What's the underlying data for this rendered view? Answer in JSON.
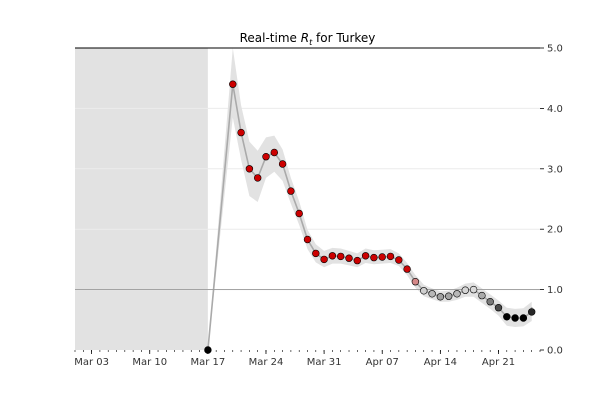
{
  "chart_data": {
    "type": "scatter",
    "title": {
      "prefix": "Real-time ",
      "symbol": "R",
      "subscript": "t",
      "suffix": " for Turkey"
    },
    "xlabel": "",
    "ylabel": "",
    "x_ticks": [
      {
        "label": "Mar 03",
        "date": "2020-03-03"
      },
      {
        "label": "Mar 10",
        "date": "2020-03-10"
      },
      {
        "label": "Mar 17",
        "date": "2020-03-17"
      },
      {
        "label": "Mar 24",
        "date": "2020-03-24"
      },
      {
        "label": "Mar 31",
        "date": "2020-03-31"
      },
      {
        "label": "Apr 07",
        "date": "2020-04-07"
      },
      {
        "label": "Apr 14",
        "date": "2020-04-14"
      },
      {
        "label": "Apr 21",
        "date": "2020-04-21"
      }
    ],
    "xlim": [
      "2020-03-01",
      "2020-04-26"
    ],
    "y_ticks": [
      "0.0",
      "1.0",
      "2.0",
      "3.0",
      "4.0",
      "5.0"
    ],
    "ylim": [
      0,
      5
    ],
    "y_axis_side": "right",
    "grid": true,
    "reference_line_y": 1.0,
    "colors": {
      "high": "#cc0000",
      "neutral": "#d9d9d9",
      "low": "#000000",
      "band": "#e2e2e2",
      "line": "#aaaaaa"
    },
    "no_data_before": "2020-03-17",
    "series": [
      {
        "dates": [
          "2020-03-17",
          "2020-03-20",
          "2020-03-21",
          "2020-03-22",
          "2020-03-23",
          "2020-03-24",
          "2020-03-25",
          "2020-03-26",
          "2020-03-27",
          "2020-03-28",
          "2020-03-29",
          "2020-03-30",
          "2020-03-31",
          "2020-04-01",
          "2020-04-02",
          "2020-04-03",
          "2020-04-04",
          "2020-04-05",
          "2020-04-06",
          "2020-04-07",
          "2020-04-08",
          "2020-04-09",
          "2020-04-10",
          "2020-04-11",
          "2020-04-12",
          "2020-04-13",
          "2020-04-14",
          "2020-04-15",
          "2020-04-16",
          "2020-04-17",
          "2020-04-18",
          "2020-04-19",
          "2020-04-20",
          "2020-04-21",
          "2020-04-22",
          "2020-04-23",
          "2020-04-24",
          "2020-04-25"
        ],
        "values": [
          0.0,
          4.4,
          3.6,
          3.0,
          2.85,
          3.2,
          3.27,
          3.08,
          2.63,
          2.26,
          1.83,
          1.6,
          1.5,
          1.56,
          1.55,
          1.52,
          1.48,
          1.56,
          1.53,
          1.54,
          1.55,
          1.49,
          1.34,
          1.13,
          0.98,
          0.93,
          0.88,
          0.89,
          0.93,
          0.99,
          1.0,
          0.9,
          0.8,
          0.7,
          0.55,
          0.53,
          0.53,
          0.63
        ],
        "lower": [
          0.0,
          3.85,
          3.15,
          2.55,
          2.45,
          2.85,
          2.95,
          2.8,
          2.42,
          2.07,
          1.67,
          1.45,
          1.37,
          1.43,
          1.43,
          1.4,
          1.37,
          1.44,
          1.42,
          1.43,
          1.44,
          1.39,
          1.24,
          1.03,
          0.89,
          0.84,
          0.8,
          0.8,
          0.83,
          0.88,
          0.88,
          0.78,
          0.68,
          0.57,
          0.4,
          0.38,
          0.39,
          0.48
        ],
        "upper": [
          0.0,
          5.0,
          4.05,
          3.45,
          3.3,
          3.52,
          3.55,
          3.32,
          2.85,
          2.46,
          1.99,
          1.75,
          1.64,
          1.69,
          1.68,
          1.64,
          1.6,
          1.68,
          1.65,
          1.66,
          1.67,
          1.6,
          1.44,
          1.24,
          1.08,
          1.02,
          0.97,
          0.98,
          1.03,
          1.1,
          1.12,
          1.02,
          0.92,
          0.82,
          0.7,
          0.68,
          0.69,
          0.8
        ]
      }
    ]
  }
}
